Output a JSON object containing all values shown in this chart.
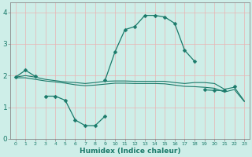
{
  "xlabel": "Humidex (Indice chaleur)",
  "x": [
    0,
    1,
    2,
    3,
    4,
    5,
    6,
    7,
    8,
    9,
    10,
    11,
    12,
    13,
    14,
    15,
    16,
    17,
    18,
    19,
    20,
    21,
    22,
    23
  ],
  "line1": [
    1.95,
    2.17,
    1.97,
    null,
    null,
    null,
    null,
    null,
    null,
    1.85,
    2.75,
    3.45,
    3.55,
    3.9,
    3.9,
    3.85,
    3.65,
    2.8,
    2.45,
    null,
    null,
    null,
    1.65,
    null
  ],
  "line2": [
    1.95,
    2.0,
    1.95,
    1.88,
    1.84,
    1.8,
    1.78,
    1.75,
    1.78,
    1.82,
    1.83,
    1.83,
    1.82,
    1.82,
    1.82,
    1.82,
    1.78,
    1.75,
    1.78,
    1.78,
    1.75,
    1.57,
    1.63,
    1.2
  ],
  "line3": [
    1.93,
    1.93,
    1.88,
    1.83,
    1.8,
    1.76,
    1.71,
    1.68,
    1.7,
    1.73,
    1.76,
    1.76,
    1.75,
    1.75,
    1.75,
    1.74,
    1.7,
    1.66,
    1.65,
    1.63,
    1.6,
    1.48,
    1.56,
    1.18
  ],
  "line4": [
    null,
    null,
    null,
    1.35,
    1.35,
    1.22,
    0.6,
    0.42,
    0.42,
    0.72,
    null,
    null,
    null,
    null,
    null,
    null,
    null,
    null,
    null,
    1.55,
    1.53,
    1.53,
    null,
    null
  ],
  "line_color": "#1a7a6a",
  "bg_color": "#ceeee8",
  "grid_color": "#e8b4b4",
  "ylim": [
    0,
    4.3
  ],
  "xlim": [
    -0.5,
    23.5
  ],
  "xtick_labels": [
    "0",
    "1",
    "2",
    "3",
    "4",
    "5",
    "6",
    "7",
    "8",
    "9",
    "10",
    "11",
    "12",
    "13",
    "14",
    "15",
    "16",
    "17",
    "18",
    "19",
    "20",
    "21",
    "22",
    "23"
  ]
}
